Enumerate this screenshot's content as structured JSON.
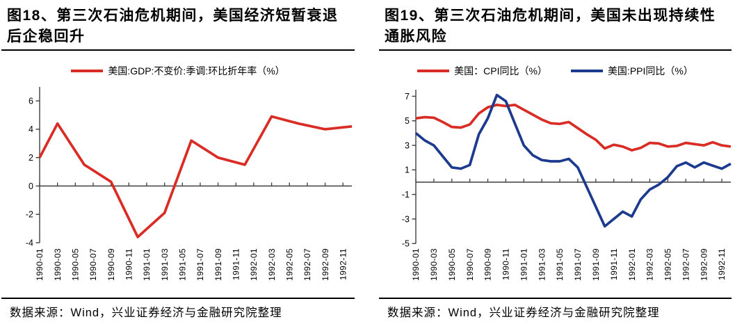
{
  "style": {
    "red": "#d92c24",
    "blue": "#1c3a8e",
    "axis_color": "#3f3f3f",
    "text_color": "#000000",
    "background": "#ffffff"
  },
  "figures": [
    {
      "title_line1": "图18、第三次石油危机期间，美国经济短暂衰退",
      "title_line2": "后企稳回升",
      "legend": [
        {
          "label": "美国:GDP:不变价:季调:环比折年率（%）",
          "color": "#d92c24"
        }
      ],
      "source": "数据来源：Wind，兴业证券经济与金融研究院整理"
    },
    {
      "title_line1": "图19、第三次石油危机期间，美国未出现持续性",
      "title_line2": "通胀风险",
      "legend": [
        {
          "label": "美国：CPI同比（%）",
          "color": "#d92c24"
        },
        {
          "label": "美国:PPI同比（%）",
          "color": "#1c3a8e"
        }
      ],
      "source": "数据来源：Wind，兴业证券经济与金融研究院整理"
    }
  ],
  "chart_data": [
    {
      "type": "line",
      "title": "图18、第三次石油危机期间，美国经济短暂衰退后企稳回升",
      "ylabel": "",
      "xlabel": "",
      "grid": false,
      "legend_position": "top",
      "ylim": [
        -4,
        7
      ],
      "y_ticks": [
        6,
        4,
        2,
        0,
        -2,
        -4
      ],
      "x_range": [
        "1990-01",
        "1992-12"
      ],
      "x_tick_step_months": 2,
      "x_tick_labels": [
        "1990-01",
        "1990-03",
        "1990-05",
        "1990-07",
        "1990-09",
        "1990-11",
        "1991-01",
        "1991-03",
        "1991-05",
        "1991-07",
        "1991-09",
        "1991-11",
        "1992-01",
        "1992-03",
        "1992-05",
        "1992-07",
        "1992-09",
        "1992-11"
      ],
      "series": [
        {
          "id": "gdp",
          "name": "美国:GDP:不变价:季调:环比折年率（%）",
          "color": "#d92c24",
          "points": [
            [
              "1990-01",
              2.0
            ],
            [
              "1990-03",
              4.4
            ],
            [
              "1990-06",
              1.5
            ],
            [
              "1990-09",
              0.3
            ],
            [
              "1990-12",
              -3.6
            ],
            [
              "1991-03",
              -1.9
            ],
            [
              "1991-06",
              3.2
            ],
            [
              "1991-09",
              2.0
            ],
            [
              "1991-12",
              1.5
            ],
            [
              "1992-03",
              4.9
            ],
            [
              "1992-06",
              4.4
            ],
            [
              "1992-09",
              4.0
            ],
            [
              "1992-12",
              4.2
            ]
          ]
        }
      ]
    },
    {
      "type": "line",
      "title": "图19、第三次石油危机期间，美国未出现持续性通胀风险",
      "ylabel": "",
      "xlabel": "",
      "grid": false,
      "legend_position": "top",
      "ylim": [
        -5,
        7.5
      ],
      "y_ticks": [
        7,
        5,
        3,
        1,
        -1,
        -3,
        -5
      ],
      "x_range": [
        "1990-01",
        "1992-12"
      ],
      "x_tick_step_months": 2,
      "x_tick_labels": [
        "1990-01",
        "1990-03",
        "1990-05",
        "1990-07",
        "1990-09",
        "1990-11",
        "1991-01",
        "1991-03",
        "1991-05",
        "1991-07",
        "1991-09",
        "1991-11",
        "1992-01",
        "1992-03",
        "1992-05",
        "1992-07",
        "1992-09",
        "1992-11"
      ],
      "x": [
        "1990-01",
        "1990-02",
        "1990-03",
        "1990-04",
        "1990-05",
        "1990-06",
        "1990-07",
        "1990-08",
        "1990-09",
        "1990-10",
        "1990-11",
        "1990-12",
        "1991-01",
        "1991-02",
        "1991-03",
        "1991-04",
        "1991-05",
        "1991-06",
        "1991-07",
        "1991-08",
        "1991-09",
        "1991-10",
        "1991-11",
        "1991-12",
        "1992-01",
        "1992-02",
        "1992-03",
        "1992-04",
        "1992-05",
        "1992-06",
        "1992-07",
        "1992-08",
        "1992-09",
        "1992-10",
        "1992-11",
        "1992-12"
      ],
      "series": [
        {
          "id": "cpi",
          "name": "美国：CPI同比（%）",
          "color": "#d92c24",
          "values": [
            5.2,
            5.3,
            5.25,
            4.9,
            4.5,
            4.45,
            4.7,
            5.6,
            6.1,
            6.3,
            6.2,
            6.3,
            5.9,
            5.5,
            5.1,
            4.8,
            4.75,
            4.9,
            4.4,
            3.9,
            3.45,
            2.75,
            3.05,
            2.9,
            2.6,
            2.8,
            3.2,
            3.15,
            2.9,
            2.95,
            3.2,
            3.1,
            3.0,
            3.25,
            3.0,
            2.9
          ]
        },
        {
          "id": "ppi",
          "name": "美国:PPI同比（%）",
          "color": "#1c3a8e",
          "values": [
            4.0,
            3.4,
            3.0,
            2.1,
            1.2,
            1.1,
            1.4,
            3.9,
            5.2,
            7.1,
            6.6,
            4.8,
            3.0,
            2.2,
            1.8,
            1.7,
            1.7,
            1.9,
            1.2,
            -0.4,
            -2.0,
            -3.6,
            -3.0,
            -2.4,
            -2.8,
            -1.4,
            -0.6,
            -0.2,
            0.4,
            1.3,
            1.6,
            1.2,
            1.6,
            1.35,
            1.1,
            1.5
          ]
        }
      ]
    }
  ]
}
